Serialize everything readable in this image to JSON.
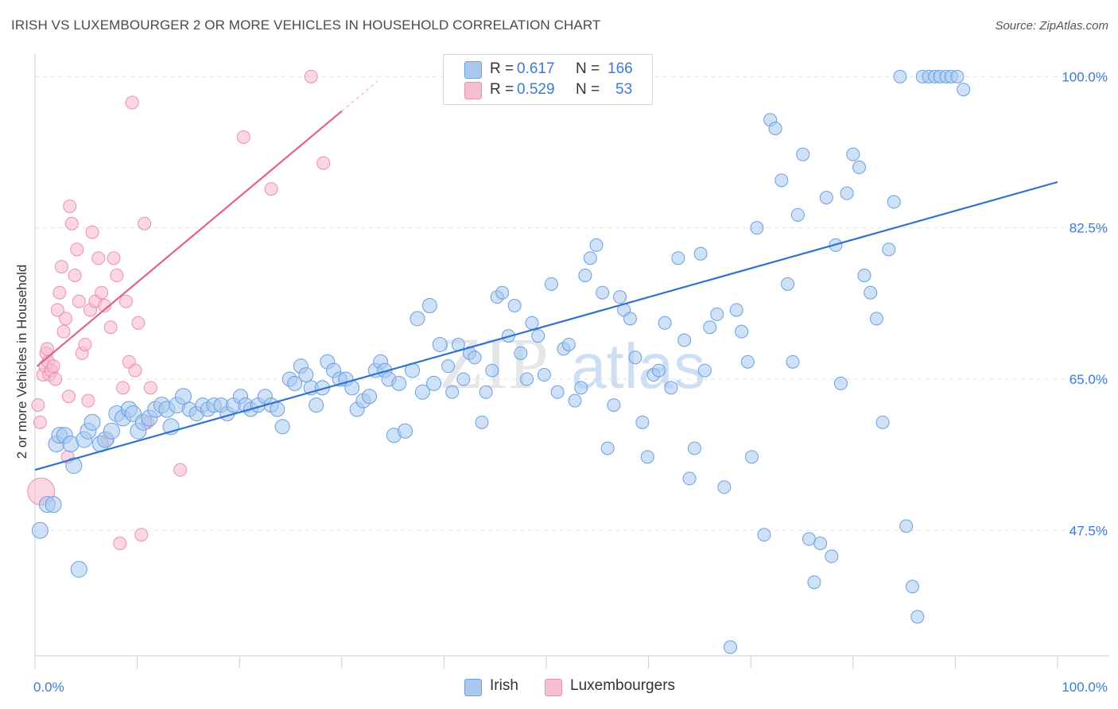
{
  "header": {
    "title": "IRISH VS LUXEMBOURGER 2 OR MORE VEHICLES IN HOUSEHOLD CORRELATION CHART",
    "source": "Source: ZipAtlas.com"
  },
  "watermark": {
    "zip": "ZIP",
    "atlas": "atlas"
  },
  "legend": {
    "irish": {
      "r_label": "R =",
      "r_value": "0.617",
      "n_label": "N =",
      "n_value": "166"
    },
    "lux": {
      "r_label": "R =",
      "r_value": "0.529",
      "n_label": "N =",
      "n_value": "53"
    }
  },
  "bottom_legend": {
    "irish": "Irish",
    "lux": "Luxembourgers"
  },
  "axes": {
    "ylabel": "2 or more Vehicles in Household",
    "x_min_label": "0.0%",
    "x_max_label": "100.0%",
    "y_tick_labels": [
      "100.0%",
      "82.5%",
      "65.0%",
      "47.5%"
    ]
  },
  "colors": {
    "irish_fill": "#a8c8f0",
    "irish_stroke": "#6b9fe0",
    "irish_line": "#2f73d0",
    "lux_fill": "#f7bdd0",
    "lux_stroke": "#ec8fb0",
    "lux_line": "#e4608a",
    "tick_label": "#3a7bd5",
    "grid": "#e0e0e0"
  },
  "chart_data": {
    "type": "scatter",
    "title": "IRISH VS LUXEMBOURGER 2 OR MORE VEHICLES IN HOUSEHOLD CORRELATION CHART",
    "xlabel": "",
    "ylabel": "2 or more Vehicles in Household",
    "xlim": [
      0,
      100
    ],
    "ylim": [
      33,
      101.5
    ],
    "y_ticks": [
      100,
      82.5,
      65,
      47.5
    ],
    "grid": true,
    "series": [
      {
        "name": "Irish",
        "trend": {
          "x": [
            0,
            100
          ],
          "y": [
            54.5,
            87.8
          ]
        },
        "points": [
          [
            0.5,
            47.5
          ],
          [
            1.2,
            50.5
          ],
          [
            1.8,
            50.5
          ],
          [
            2.1,
            57.5
          ],
          [
            2.4,
            58.5
          ],
          [
            2.9,
            58.5
          ],
          [
            3.5,
            57.5
          ],
          [
            3.8,
            55
          ],
          [
            4.3,
            43
          ],
          [
            4.8,
            58
          ],
          [
            5.2,
            59
          ],
          [
            5.6,
            60
          ],
          [
            6.4,
            57.5
          ],
          [
            6.9,
            58
          ],
          [
            7.5,
            59
          ],
          [
            8.0,
            61
          ],
          [
            8.6,
            60.5
          ],
          [
            9.2,
            61.5
          ],
          [
            9.6,
            61
          ],
          [
            10.1,
            59
          ],
          [
            10.6,
            60
          ],
          [
            11.2,
            60.5
          ],
          [
            11.8,
            61.5
          ],
          [
            12.4,
            62
          ],
          [
            12.9,
            61.5
          ],
          [
            13.3,
            59.5
          ],
          [
            13.9,
            62
          ],
          [
            14.5,
            63
          ],
          [
            15.1,
            61.5
          ],
          [
            15.8,
            61
          ],
          [
            16.4,
            62
          ],
          [
            16.9,
            61.5
          ],
          [
            17.5,
            62
          ],
          [
            18.2,
            62
          ],
          [
            18.8,
            61
          ],
          [
            19.4,
            62
          ],
          [
            20.1,
            63
          ],
          [
            20.6,
            62
          ],
          [
            21.1,
            61.5
          ],
          [
            21.8,
            62
          ],
          [
            22.5,
            63
          ],
          [
            23.1,
            62
          ],
          [
            23.7,
            61.5
          ],
          [
            24.2,
            59.5
          ],
          [
            24.9,
            65
          ],
          [
            25.4,
            64.5
          ],
          [
            26.0,
            66.5
          ],
          [
            26.5,
            65.5
          ],
          [
            27.0,
            64
          ],
          [
            27.5,
            62
          ],
          [
            28.1,
            64
          ],
          [
            28.6,
            67
          ],
          [
            29.2,
            66
          ],
          [
            29.8,
            65
          ],
          [
            30.4,
            65
          ],
          [
            31.0,
            64
          ],
          [
            31.5,
            61.5
          ],
          [
            32.1,
            62.5
          ],
          [
            32.7,
            63
          ],
          [
            33.3,
            66
          ],
          [
            33.8,
            67
          ],
          [
            34.2,
            66
          ],
          [
            34.6,
            65
          ],
          [
            35.1,
            58.5
          ],
          [
            35.6,
            64.5
          ],
          [
            36.2,
            59
          ],
          [
            36.9,
            66
          ],
          [
            37.4,
            72
          ],
          [
            37.9,
            63.5
          ],
          [
            38.6,
            73.5
          ],
          [
            39.0,
            64.5
          ],
          [
            39.6,
            69
          ],
          [
            40.4,
            66.5
          ],
          [
            40.8,
            63.5
          ],
          [
            41.4,
            69
          ],
          [
            41.9,
            65
          ],
          [
            42.5,
            68
          ],
          [
            43.0,
            67.5
          ],
          [
            43.7,
            60
          ],
          [
            44.1,
            63.5
          ],
          [
            44.7,
            66
          ],
          [
            45.2,
            74.5
          ],
          [
            45.7,
            75
          ],
          [
            46.3,
            70
          ],
          [
            46.9,
            73.5
          ],
          [
            47.5,
            68
          ],
          [
            48.1,
            65
          ],
          [
            48.6,
            71.5
          ],
          [
            49.2,
            70
          ],
          [
            49.8,
            65.5
          ],
          [
            50.5,
            76
          ],
          [
            51.1,
            63.5
          ],
          [
            51.7,
            68.5
          ],
          [
            52.2,
            69
          ],
          [
            52.8,
            62.5
          ],
          [
            53.4,
            64
          ],
          [
            53.8,
            77
          ],
          [
            54.3,
            79
          ],
          [
            54.9,
            80.5
          ],
          [
            55.5,
            75
          ],
          [
            56.0,
            57
          ],
          [
            56.6,
            62
          ],
          [
            57.2,
            74.5
          ],
          [
            57.6,
            73
          ],
          [
            58.2,
            72
          ],
          [
            58.7,
            67.5
          ],
          [
            59.4,
            60
          ],
          [
            59.9,
            56
          ],
          [
            60.5,
            65.5
          ],
          [
            61.0,
            66
          ],
          [
            61.6,
            71.5
          ],
          [
            62.2,
            64
          ],
          [
            62.9,
            79
          ],
          [
            63.5,
            69.5
          ],
          [
            64.0,
            53.5
          ],
          [
            64.5,
            57
          ],
          [
            65.1,
            79.5
          ],
          [
            65.5,
            66
          ],
          [
            66.0,
            71
          ],
          [
            66.7,
            72.5
          ],
          [
            67.4,
            52.5
          ],
          [
            68.0,
            34
          ],
          [
            68.6,
            73
          ],
          [
            69.1,
            70.5
          ],
          [
            69.7,
            67
          ],
          [
            70.1,
            56
          ],
          [
            70.6,
            82.5
          ],
          [
            71.3,
            47
          ],
          [
            71.9,
            95
          ],
          [
            72.4,
            94
          ],
          [
            73.0,
            88
          ],
          [
            73.6,
            76
          ],
          [
            74.1,
            67
          ],
          [
            74.6,
            84
          ],
          [
            75.1,
            91
          ],
          [
            75.7,
            46.5
          ],
          [
            76.2,
            41.5
          ],
          [
            76.8,
            46
          ],
          [
            77.4,
            86
          ],
          [
            77.9,
            44.5
          ],
          [
            78.3,
            80.5
          ],
          [
            78.8,
            64.5
          ],
          [
            79.4,
            86.5
          ],
          [
            80.0,
            91
          ],
          [
            80.6,
            89.5
          ],
          [
            81.1,
            77
          ],
          [
            81.7,
            75
          ],
          [
            82.3,
            72
          ],
          [
            82.9,
            60
          ],
          [
            83.5,
            80
          ],
          [
            84.0,
            85.5
          ],
          [
            84.6,
            100
          ],
          [
            85.2,
            48
          ],
          [
            85.8,
            41
          ],
          [
            86.3,
            37.5
          ],
          [
            86.8,
            100
          ],
          [
            87.4,
            100
          ],
          [
            88.0,
            100
          ],
          [
            88.5,
            100
          ],
          [
            89.1,
            100
          ],
          [
            89.6,
            100
          ],
          [
            90.2,
            100
          ],
          [
            90.8,
            98.5
          ]
        ]
      },
      {
        "name": "Luxembourgers",
        "trend": {
          "x": [
            0.2,
            30
          ],
          "y": [
            66.5,
            96
          ]
        },
        "points": [
          [
            0.3,
            62
          ],
          [
            0.5,
            60
          ],
          [
            0.6,
            52
          ],
          [
            0.8,
            65.5
          ],
          [
            1.0,
            66.5
          ],
          [
            1.1,
            68
          ],
          [
            1.2,
            68.5
          ],
          [
            1.3,
            67
          ],
          [
            1.4,
            65.5
          ],
          [
            1.6,
            66
          ],
          [
            1.8,
            66.5
          ],
          [
            2.0,
            65
          ],
          [
            2.2,
            73
          ],
          [
            2.4,
            75
          ],
          [
            2.6,
            78
          ],
          [
            2.8,
            70.5
          ],
          [
            3.0,
            72
          ],
          [
            3.2,
            56
          ],
          [
            3.3,
            63
          ],
          [
            3.4,
            85
          ],
          [
            3.6,
            83
          ],
          [
            3.9,
            77
          ],
          [
            4.1,
            80
          ],
          [
            4.3,
            74
          ],
          [
            4.6,
            68
          ],
          [
            4.9,
            69
          ],
          [
            5.2,
            62.5
          ],
          [
            5.4,
            73
          ],
          [
            5.6,
            82
          ],
          [
            5.9,
            74
          ],
          [
            6.2,
            79
          ],
          [
            6.5,
            75
          ],
          [
            6.8,
            73.5
          ],
          [
            7.1,
            58
          ],
          [
            7.4,
            71
          ],
          [
            7.7,
            79
          ],
          [
            8.0,
            77
          ],
          [
            8.3,
            46
          ],
          [
            8.6,
            64
          ],
          [
            8.9,
            74
          ],
          [
            9.2,
            67
          ],
          [
            9.5,
            97
          ],
          [
            9.8,
            66
          ],
          [
            10.1,
            71.5
          ],
          [
            10.4,
            47
          ],
          [
            10.7,
            83
          ],
          [
            11.0,
            60
          ],
          [
            11.3,
            64
          ],
          [
            14.2,
            54.5
          ],
          [
            20.4,
            93
          ],
          [
            23.1,
            87
          ],
          [
            27.0,
            100
          ],
          [
            28.2,
            90
          ]
        ]
      }
    ]
  }
}
